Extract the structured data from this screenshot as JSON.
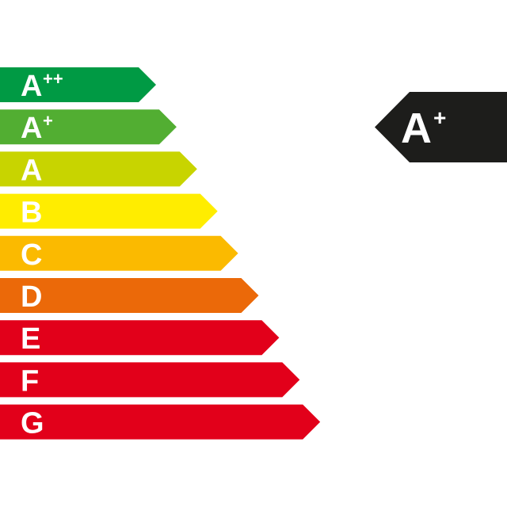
{
  "scale": [
    {
      "letter": "A",
      "sup": "++",
      "color": "#009a44"
    },
    {
      "letter": "A",
      "sup": "+",
      "color": "#52ae32"
    },
    {
      "letter": "A",
      "sup": "",
      "color": "#c8d400"
    },
    {
      "letter": "B",
      "sup": "",
      "color": "#ffed00"
    },
    {
      "letter": "C",
      "sup": "",
      "color": "#fbba00"
    },
    {
      "letter": "D",
      "sup": "",
      "color": "#eb6909"
    },
    {
      "letter": "E",
      "sup": "",
      "color": "#e2001a"
    },
    {
      "letter": "F",
      "sup": "",
      "color": "#e2001a"
    },
    {
      "letter": "G",
      "sup": "",
      "color": "#e2001a"
    }
  ],
  "rating": {
    "letter": "A",
    "sup": "+",
    "color": "#1d1d1b"
  }
}
